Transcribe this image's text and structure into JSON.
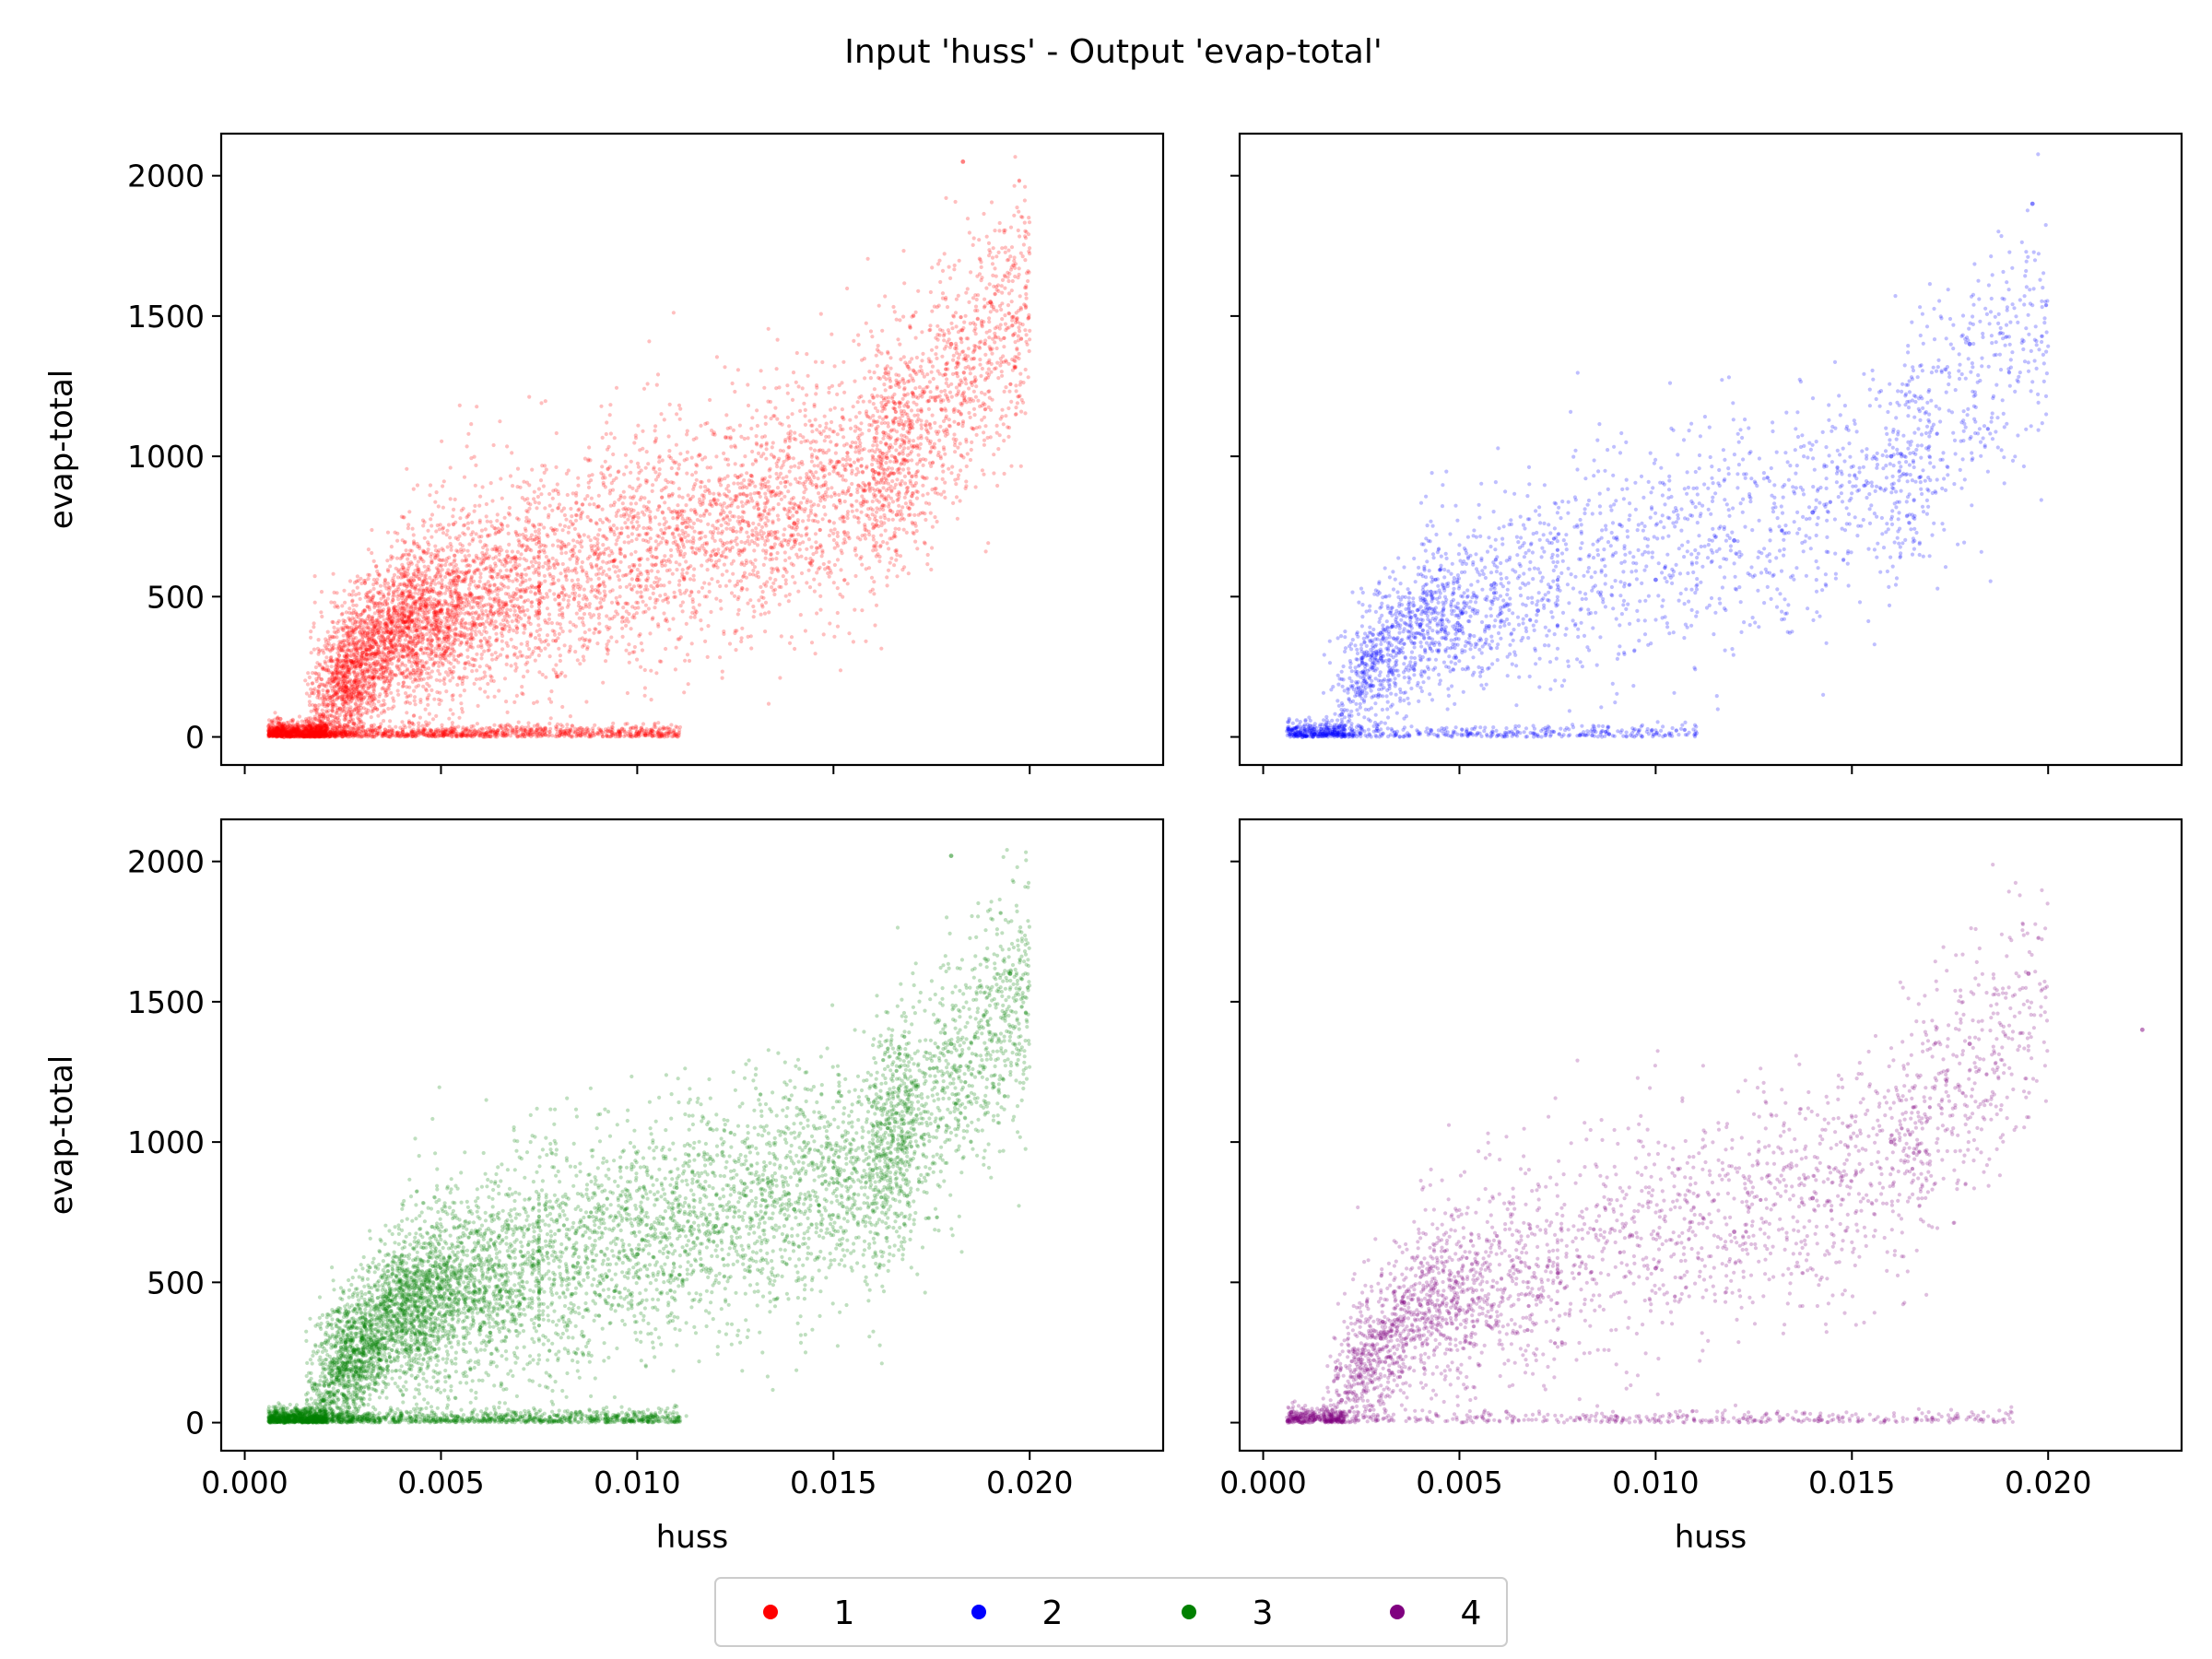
{
  "figure": {
    "title": "Input 'huss' - Output 'evap-total'"
  },
  "colors": {
    "1": "#ff0000",
    "2": "#0000ff",
    "3": "#008000",
    "4": "#800080"
  },
  "legend": {
    "placement": "bottom-center",
    "items": [
      {
        "label": "1",
        "color": "#ff0000"
      },
      {
        "label": "2",
        "color": "#0000ff"
      },
      {
        "label": "3",
        "color": "#008000"
      },
      {
        "label": "4",
        "color": "#800080"
      }
    ]
  },
  "chart_data": [
    {
      "type": "scatter",
      "panel": "top-left",
      "series": [
        {
          "name": "1",
          "color": "#ff0000"
        }
      ],
      "xlabel": "",
      "ylabel": "evap-total",
      "xlim": [
        -0.0006,
        0.0234
      ],
      "ylim": [
        -100,
        2150
      ],
      "yticks": [
        0,
        500,
        1000,
        1500,
        2000
      ],
      "ytick_labels": [
        "0",
        "500",
        "1000",
        "1500",
        "2000"
      ],
      "xticks": [
        0.0,
        0.005,
        0.01,
        0.015,
        0.02
      ],
      "xtick_labels": [],
      "grid": false,
      "approx_points": [
        [
          0.001,
          0
        ],
        [
          0.002,
          80
        ],
        [
          0.003,
          300
        ],
        [
          0.004,
          420
        ],
        [
          0.005,
          450
        ],
        [
          0.006,
          400
        ],
        [
          0.008,
          500
        ],
        [
          0.01,
          560
        ],
        [
          0.012,
          650
        ],
        [
          0.014,
          760
        ],
        [
          0.016,
          950
        ],
        [
          0.018,
          1400
        ],
        [
          0.019,
          1550
        ],
        [
          0.0183,
          2050
        ]
      ]
    },
    {
      "type": "scatter",
      "panel": "top-right",
      "series": [
        {
          "name": "2",
          "color": "#0000ff"
        }
      ],
      "xlabel": "",
      "ylabel": "",
      "xlim": [
        -0.0006,
        0.0234
      ],
      "ylim": [
        -100,
        2150
      ],
      "yticks": [
        0,
        500,
        1000,
        1500,
        2000
      ],
      "ytick_labels": [],
      "xticks": [
        0.0,
        0.005,
        0.01,
        0.015,
        0.02
      ],
      "xtick_labels": [],
      "grid": false,
      "approx_points": [
        [
          0.001,
          0
        ],
        [
          0.002,
          80
        ],
        [
          0.003,
          280
        ],
        [
          0.004,
          400
        ],
        [
          0.005,
          380
        ],
        [
          0.007,
          450
        ],
        [
          0.01,
          560
        ],
        [
          0.012,
          700
        ],
        [
          0.014,
          800
        ],
        [
          0.016,
          1000
        ],
        [
          0.018,
          1400
        ],
        [
          0.0196,
          1900
        ]
      ]
    },
    {
      "type": "scatter",
      "panel": "bottom-left",
      "series": [
        {
          "name": "3",
          "color": "#008000"
        }
      ],
      "xlabel": "huss",
      "ylabel": "evap-total",
      "xlim": [
        -0.0006,
        0.0234
      ],
      "ylim": [
        -100,
        2150
      ],
      "yticks": [
        0,
        500,
        1000,
        1500,
        2000
      ],
      "ytick_labels": [
        "0",
        "500",
        "1000",
        "1500",
        "2000"
      ],
      "xticks": [
        0.0,
        0.005,
        0.01,
        0.015,
        0.02
      ],
      "xtick_labels": [
        "0.000",
        "0.005",
        "0.010",
        "0.015",
        "0.020"
      ],
      "grid": false,
      "approx_points": [
        [
          0.001,
          0
        ],
        [
          0.002,
          80
        ],
        [
          0.003,
          300
        ],
        [
          0.004,
          420
        ],
        [
          0.005,
          450
        ],
        [
          0.007,
          420
        ],
        [
          0.01,
          600
        ],
        [
          0.012,
          700
        ],
        [
          0.014,
          760
        ],
        [
          0.016,
          900
        ],
        [
          0.018,
          1350
        ],
        [
          0.0195,
          1600
        ],
        [
          0.018,
          2020
        ]
      ]
    },
    {
      "type": "scatter",
      "panel": "bottom-right",
      "series": [
        {
          "name": "4",
          "color": "#800080"
        }
      ],
      "xlabel": "huss",
      "ylabel": "",
      "xlim": [
        -0.0006,
        0.0234
      ],
      "ylim": [
        -100,
        2150
      ],
      "yticks": [
        0,
        500,
        1000,
        1500,
        2000
      ],
      "ytick_labels": [],
      "xticks": [
        0.0,
        0.005,
        0.01,
        0.015,
        0.02
      ],
      "xtick_labels": [
        "0.000",
        "0.005",
        "0.010",
        "0.015",
        "0.020"
      ],
      "grid": false,
      "approx_points": [
        [
          0.001,
          0
        ],
        [
          0.002,
          80
        ],
        [
          0.003,
          300
        ],
        [
          0.004,
          420
        ],
        [
          0.005,
          400
        ],
        [
          0.007,
          450
        ],
        [
          0.01,
          550
        ],
        [
          0.012,
          680
        ],
        [
          0.014,
          800
        ],
        [
          0.016,
          1000
        ],
        [
          0.018,
          1350
        ],
        [
          0.0195,
          1600
        ],
        [
          0.0224,
          1400
        ]
      ]
    }
  ]
}
